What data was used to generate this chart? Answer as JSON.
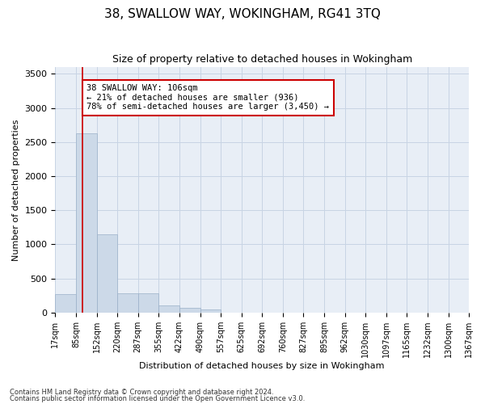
{
  "title": "38, SWALLOW WAY, WOKINGHAM, RG41 3TQ",
  "subtitle": "Size of property relative to detached houses in Wokingham",
  "xlabel": "Distribution of detached houses by size in Wokingham",
  "ylabel": "Number of detached properties",
  "footnote1": "Contains HM Land Registry data © Crown copyright and database right 2024.",
  "footnote2": "Contains public sector information licensed under the Open Government Licence v3.0.",
  "bar_edges": [
    17,
    85,
    152,
    220,
    287,
    355,
    422,
    490,
    557,
    625,
    692,
    760,
    827,
    895,
    962,
    1030,
    1097,
    1165,
    1232,
    1300,
    1367
  ],
  "bar_heights": [
    270,
    2630,
    1150,
    285,
    285,
    100,
    65,
    45,
    0,
    0,
    0,
    0,
    0,
    0,
    0,
    0,
    0,
    0,
    0,
    0
  ],
  "bar_color": "#ccd9e8",
  "bar_edgecolor": "#9ab0c8",
  "property_size": 106,
  "vline_color": "#cc0000",
  "annotation_text": "38 SWALLOW WAY: 106sqm\n← 21% of detached houses are smaller (936)\n78% of semi-detached houses are larger (3,450) →",
  "annotation_box_edgecolor": "#cc0000",
  "annotation_box_facecolor": "#ffffff",
  "ylim": [
    0,
    3600
  ],
  "yticks": [
    0,
    500,
    1000,
    1500,
    2000,
    2500,
    3000,
    3500
  ],
  "grid_color": "#c8d4e4",
  "bg_color": "#e8eef6",
  "title_fontsize": 11,
  "subtitle_fontsize": 9,
  "axis_label_fontsize": 8,
  "tick_label_fontsize": 7,
  "annotation_fontsize": 7.5,
  "footnote_fontsize": 6
}
